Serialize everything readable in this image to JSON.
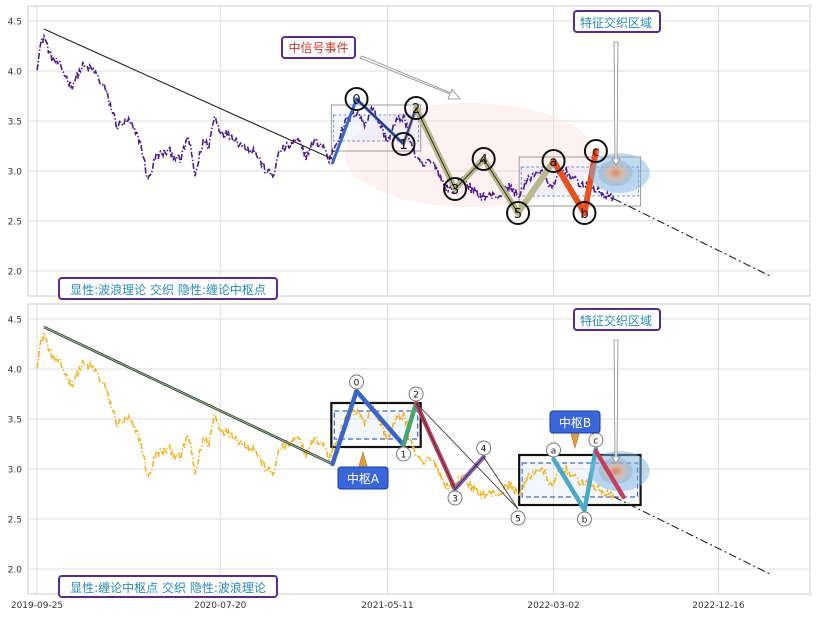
{
  "chart_data": [
    {
      "type": "line",
      "panel": "top",
      "x_ticks": [
        "2019-09-25",
        "2020-07-20",
        "2021-05-11",
        "2022-03-02",
        "2022-12-16"
      ],
      "y_ticks": [
        "2.0",
        "2.5",
        "3.0",
        "3.5",
        "4.0",
        "4.5"
      ],
      "ylim": [
        1.75,
        4.65
      ],
      "grid": true,
      "price_color": "#4b1a8c",
      "price_keypoints": [
        [
          0,
          4.05
        ],
        [
          3,
          4.25
        ],
        [
          6,
          4.35
        ],
        [
          12,
          4.15
        ],
        [
          20,
          4.05
        ],
        [
          30,
          3.85
        ],
        [
          40,
          4.05
        ],
        [
          50,
          4.0
        ],
        [
          60,
          3.8
        ],
        [
          70,
          3.45
        ],
        [
          80,
          3.5
        ],
        [
          90,
          3.3
        ],
        [
          97,
          2.9
        ],
        [
          104,
          3.15
        ],
        [
          115,
          3.2
        ],
        [
          125,
          3.1
        ],
        [
          132,
          3.35
        ],
        [
          138,
          2.95
        ],
        [
          145,
          3.3
        ],
        [
          150,
          3.25
        ],
        [
          155,
          3.55
        ],
        [
          160,
          3.4
        ],
        [
          170,
          3.35
        ],
        [
          180,
          3.25
        ],
        [
          190,
          3.2
        ],
        [
          200,
          3.0
        ],
        [
          206,
          2.95
        ],
        [
          212,
          3.2
        ],
        [
          220,
          3.25
        ],
        [
          228,
          3.3
        ],
        [
          235,
          3.15
        ],
        [
          242,
          3.3
        ],
        [
          250,
          3.25
        ],
        [
          255,
          3.1
        ],
        [
          262,
          3.3
        ],
        [
          270,
          3.5
        ],
        [
          280,
          3.6
        ],
        [
          286,
          3.45
        ],
        [
          292,
          3.65
        ],
        [
          300,
          3.45
        ],
        [
          306,
          3.3
        ],
        [
          314,
          3.5
        ],
        [
          320,
          3.55
        ],
        [
          326,
          3.3
        ],
        [
          332,
          3.1
        ],
        [
          338,
          3.05
        ],
        [
          342,
          3.1
        ],
        [
          348,
          3.05
        ],
        [
          356,
          2.85
        ],
        [
          364,
          2.8
        ],
        [
          372,
          2.95
        ],
        [
          380,
          2.8
        ],
        [
          388,
          2.75
        ],
        [
          396,
          2.75
        ],
        [
          404,
          2.75
        ],
        [
          412,
          2.85
        ],
        [
          420,
          2.75
        ],
        [
          428,
          2.9
        ],
        [
          436,
          3.0
        ],
        [
          444,
          2.95
        ],
        [
          450,
          2.8
        ],
        [
          456,
          3.0
        ],
        [
          462,
          3.0
        ],
        [
          470,
          2.9
        ],
        [
          480,
          2.85
        ],
        [
          490,
          2.8
        ],
        [
          498,
          2.75
        ],
        [
          504,
          2.7
        ]
      ],
      "trend_line": [
        [
          6,
          4.42
        ],
        [
          258,
          3.12
        ]
      ],
      "projection_line": [
        [
          504,
          2.72
        ],
        [
          640,
          1.95
        ]
      ],
      "wave_points": [
        {
          "label": "0",
          "t": 279,
          "y": 3.72
        },
        {
          "label": "1",
          "t": 320,
          "y": 3.27
        },
        {
          "label": "2",
          "t": 331,
          "y": 3.63
        },
        {
          "label": "3",
          "t": 365,
          "y": 2.82
        },
        {
          "label": "4",
          "t": 390,
          "y": 3.12
        },
        {
          "label": "5",
          "t": 420,
          "y": 2.58
        },
        {
          "label": "a",
          "t": 451,
          "y": 3.1
        },
        {
          "label": "b",
          "t": 478,
          "y": 2.58
        },
        {
          "label": "c",
          "t": 488,
          "y": 3.2
        }
      ],
      "pivot_zones": [
        {
          "t0": 257,
          "t1": 335,
          "y0": 3.2,
          "y1": 3.66
        },
        {
          "t0": 421,
          "t1": 527,
          "y0": 2.65,
          "y1": 3.14
        }
      ],
      "annotations": {
        "signal_event": "中信号事件",
        "feature_zone": "特征交织区域",
        "caption": "显性:波浪理论 交织 隐性:缠论中枢点"
      }
    },
    {
      "type": "line",
      "panel": "bottom",
      "x_ticks": [
        "2019-09-25",
        "2020-07-20",
        "2021-05-11",
        "2022-03-02",
        "2022-12-16"
      ],
      "y_ticks": [
        "2.0",
        "2.5",
        "3.0",
        "3.5",
        "4.0",
        "4.5"
      ],
      "ylim": [
        1.75,
        4.65
      ],
      "grid": true,
      "price_color": "#f0b429",
      "trend_line": [
        [
          6,
          4.42
        ],
        [
          258,
          3.05
        ]
      ],
      "projection_line": [
        [
          504,
          2.72
        ],
        [
          640,
          1.95
        ]
      ],
      "wave_points": [
        {
          "label": "0",
          "t": 279,
          "y": 3.78
        },
        {
          "label": "1",
          "t": 320,
          "y": 3.24
        },
        {
          "label": "2",
          "t": 331,
          "y": 3.66
        },
        {
          "label": "3",
          "t": 365,
          "y": 2.8
        },
        {
          "label": "4",
          "t": 390,
          "y": 3.12
        },
        {
          "label": "5",
          "t": 420,
          "y": 2.6
        },
        {
          "label": "a",
          "t": 451,
          "y": 3.1
        },
        {
          "label": "b",
          "t": 478,
          "y": 2.59
        },
        {
          "label": "c",
          "t": 488,
          "y": 3.2
        }
      ],
      "pivot_zones": [
        {
          "label": "中枢A",
          "t0": 257,
          "t1": 335,
          "y0": 3.22,
          "y1": 3.66
        },
        {
          "label": "中枢B",
          "t0": 421,
          "t1": 527,
          "y0": 2.64,
          "y1": 3.14
        }
      ],
      "annotations": {
        "feature_zone": "特征交织区域",
        "caption": "显性:缠论中枢点 交织 隐性:波浪理论"
      }
    }
  ]
}
